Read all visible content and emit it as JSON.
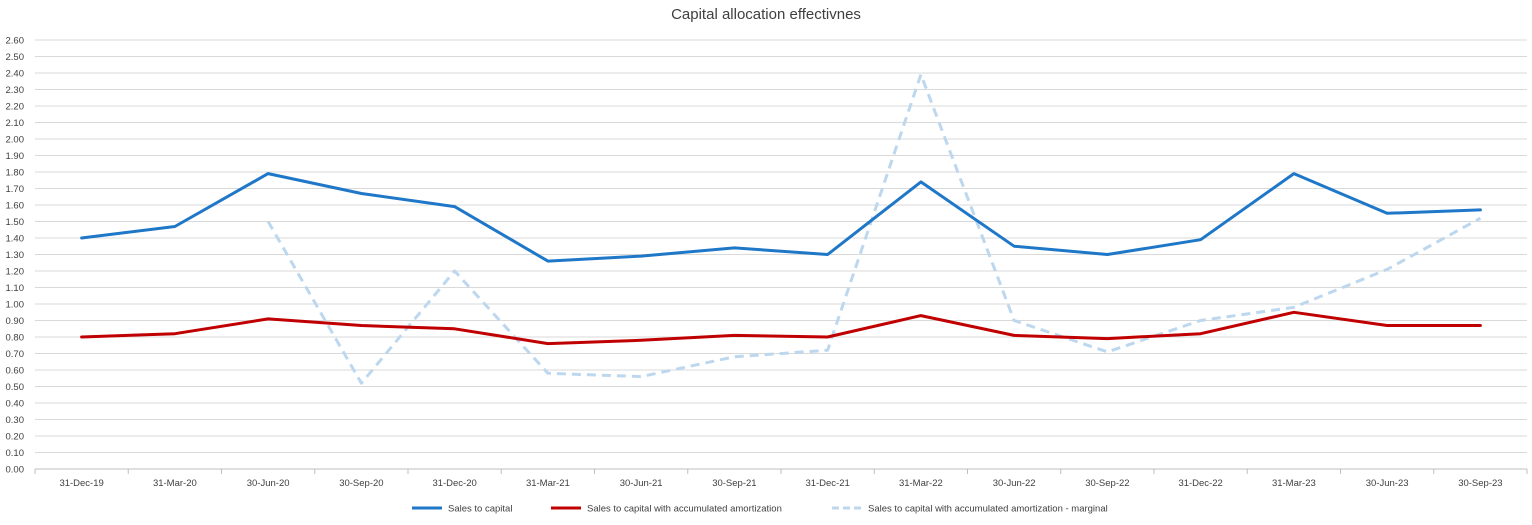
{
  "chart_data": {
    "type": "line",
    "title": "Capital allocation effectivnes",
    "xlabel": "",
    "ylabel": "",
    "categories": [
      "31-Dec-19",
      "31-Mar-20",
      "30-Jun-20",
      "30-Sep-20",
      "31-Dec-20",
      "31-Mar-21",
      "30-Jun-21",
      "30-Sep-21",
      "31-Dec-21",
      "31-Mar-22",
      "30-Jun-22",
      "30-Sep-22",
      "31-Dec-22",
      "31-Mar-23",
      "30-Jun-23",
      "30-Sep-23"
    ],
    "yticks": [
      "0.00",
      "0.10",
      "0.20",
      "0.30",
      "0.40",
      "0.50",
      "0.60",
      "0.70",
      "0.80",
      "0.90",
      "1.00",
      "1.10",
      "1.20",
      "1.30",
      "1.40",
      "1.50",
      "1.60",
      "1.70",
      "1.80",
      "1.90",
      "2.00",
      "2.10",
      "2.20",
      "2.30",
      "2.40",
      "2.50",
      "2.60"
    ],
    "ylim": [
      0,
      2.6
    ],
    "grid": true,
    "legend_position": "bottom",
    "series": [
      {
        "name": "Sales to capital",
        "color": "#1F77C8",
        "style": "solid",
        "values": [
          1.4,
          1.47,
          1.79,
          1.67,
          1.59,
          1.26,
          1.29,
          1.34,
          1.3,
          1.74,
          1.35,
          1.3,
          1.39,
          1.79,
          1.55,
          1.57
        ]
      },
      {
        "name": "Sales to capital with accumulated amortization",
        "color": "#C00000",
        "style": "solid",
        "values": [
          0.8,
          0.82,
          0.91,
          0.87,
          0.85,
          0.76,
          0.78,
          0.81,
          0.8,
          0.93,
          0.81,
          0.79,
          0.82,
          0.95,
          0.87,
          0.87
        ]
      },
      {
        "name": "Sales to capital with accumulated amortization - marginal",
        "color": "#BDD7EE",
        "style": "dashed",
        "values": [
          null,
          null,
          1.5,
          0.52,
          1.2,
          0.58,
          0.56,
          0.68,
          0.72,
          2.39,
          0.9,
          0.71,
          0.9,
          0.98,
          1.21,
          1.52
        ]
      }
    ]
  }
}
